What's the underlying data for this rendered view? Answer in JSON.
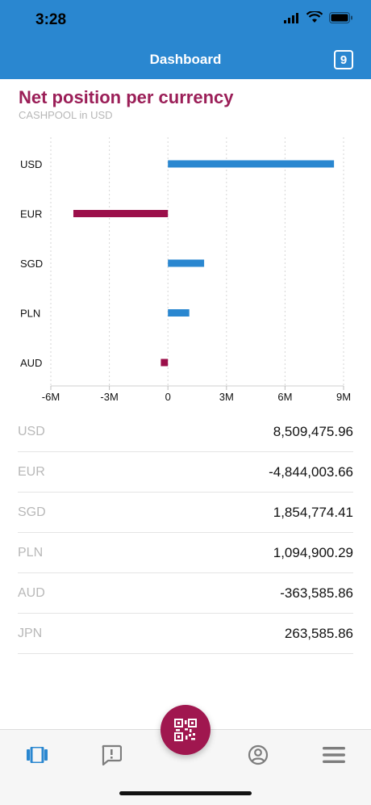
{
  "status": {
    "time": "3:28"
  },
  "header": {
    "title": "Dashboard",
    "badge": "9"
  },
  "chart": {
    "title": "Net position per currency",
    "subtitle": "CASHPOOL in USD"
  },
  "chart_data": {
    "type": "bar",
    "orientation": "horizontal",
    "title": "Net position per currency",
    "subtitle": "CASHPOOL in USD",
    "categories": [
      "USD",
      "EUR",
      "SGD",
      "PLN",
      "AUD"
    ],
    "values": [
      8509475.96,
      -4844003.66,
      1854774.41,
      1094900.29,
      -363585.86
    ],
    "xlim": [
      -6000000,
      9000000
    ],
    "x_ticks": [
      -6000000,
      -3000000,
      0,
      3000000,
      6000000,
      9000000
    ],
    "x_tick_labels": [
      "-6M",
      "-3M",
      "0",
      "3M",
      "6M",
      "9M"
    ],
    "positive_color": "#2a87d0",
    "negative_color": "#9b0f4a",
    "grid": true
  },
  "positions": [
    {
      "currency": "USD",
      "amount": "8,509,475.96"
    },
    {
      "currency": "EUR",
      "amount": "-4,844,003.66"
    },
    {
      "currency": "SGD",
      "amount": "1,854,774.41"
    },
    {
      "currency": "PLN",
      "amount": "1,094,900.29"
    },
    {
      "currency": "AUD",
      "amount": "-363,585.86"
    },
    {
      "currency": "JPN",
      "amount": "263,585.86"
    }
  ],
  "colors": {
    "accent": "#2a87d0",
    "brand": "#9b1f58"
  },
  "tabs": [
    {
      "icon": "dashboard-icon",
      "active": true
    },
    {
      "icon": "message-alert-icon",
      "active": false
    },
    {
      "icon": "qr-code-icon",
      "active": false
    },
    {
      "icon": "user-circle-icon",
      "active": false
    },
    {
      "icon": "menu-icon",
      "active": false
    }
  ]
}
